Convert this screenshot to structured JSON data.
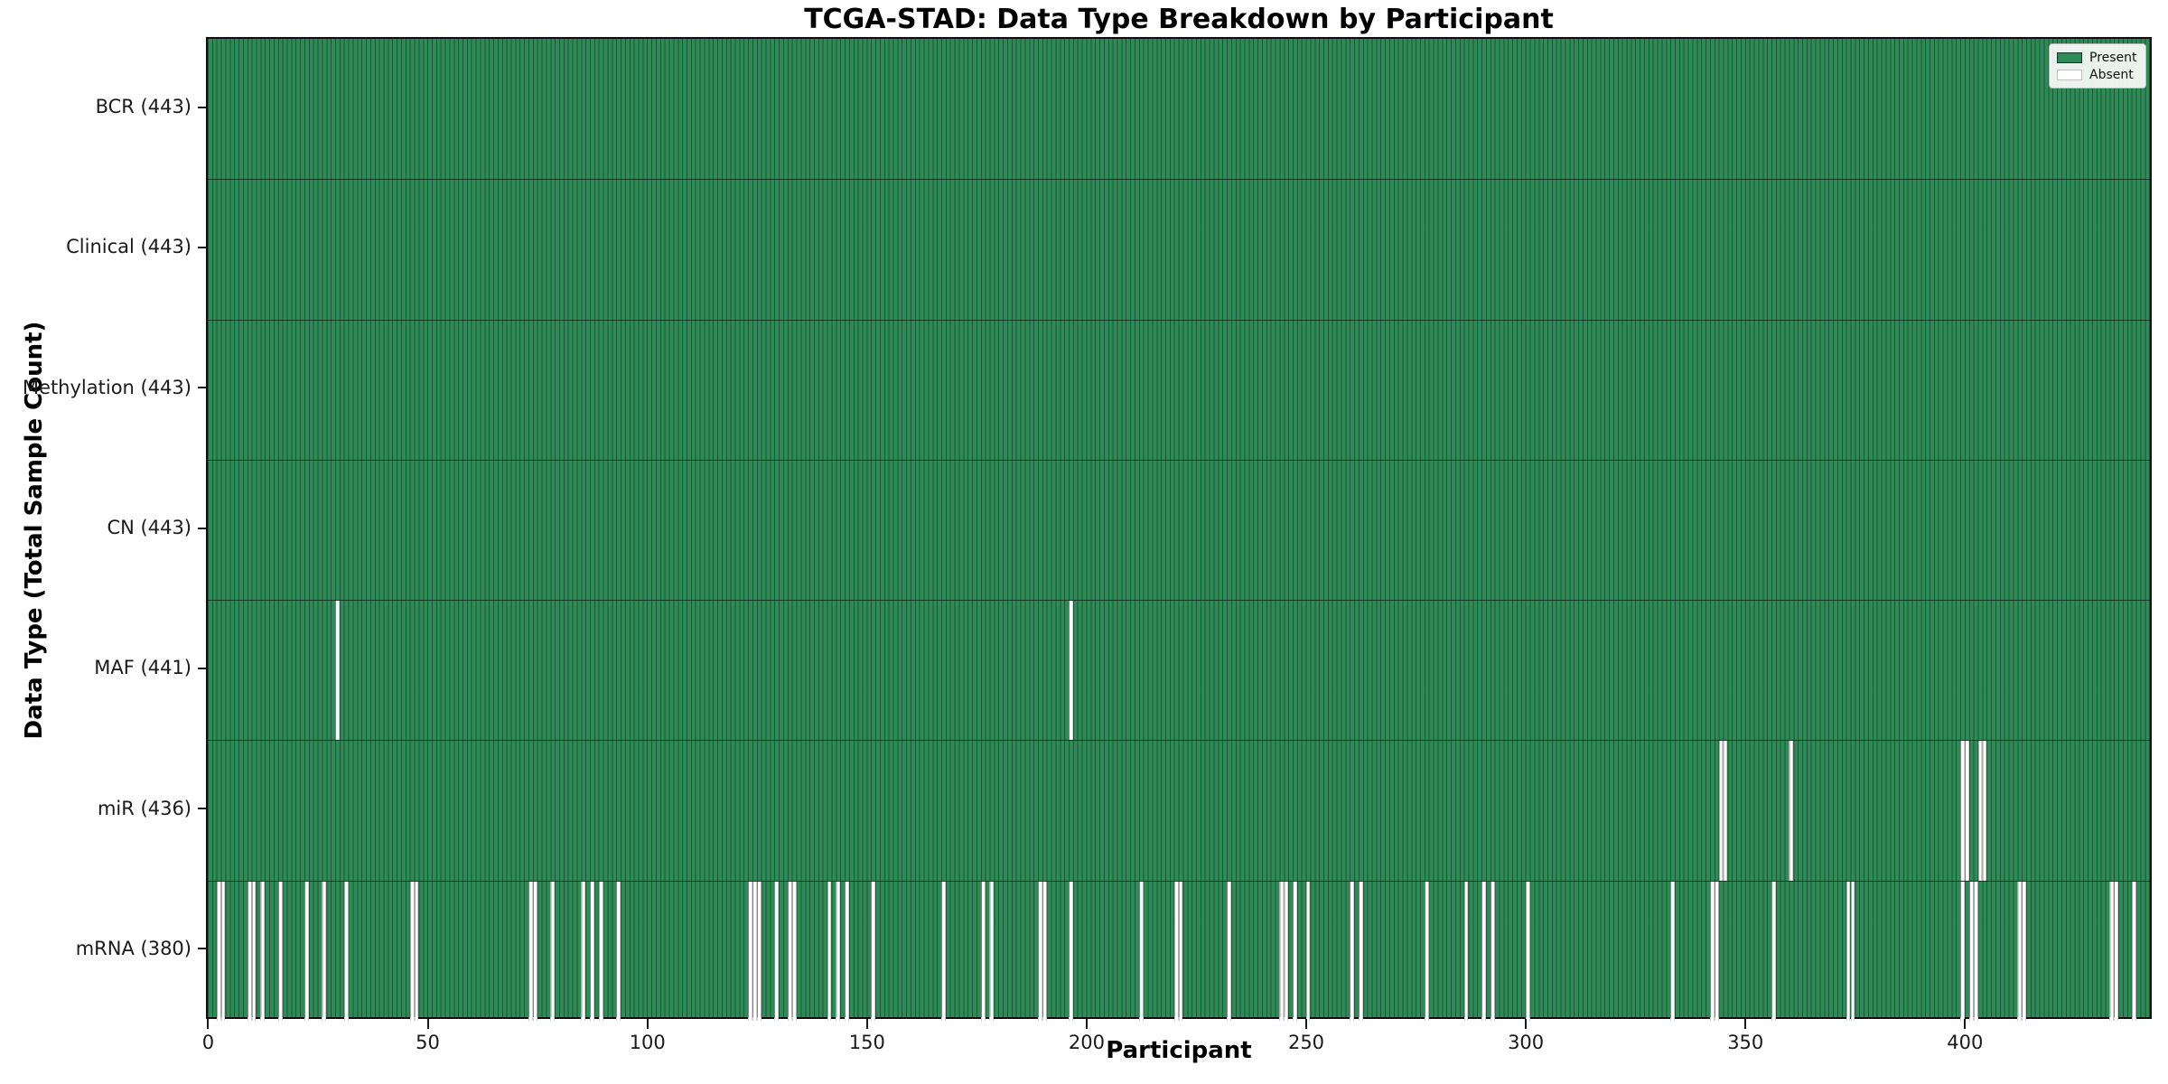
{
  "chart_data": {
    "type": "heatmap",
    "title": "TCGA-STAD: Data Type Breakdown by Participant",
    "xlabel": "Participant",
    "ylabel": "Data Type (Total Sample Count)",
    "n_participants": 443,
    "x_ticks": [
      0,
      50,
      100,
      150,
      200,
      250,
      300,
      350,
      400
    ],
    "rows": [
      {
        "name": "BCR",
        "label": "BCR (443)",
        "total": 443,
        "absent": []
      },
      {
        "name": "Clinical",
        "label": "Clinical (443)",
        "total": 443,
        "absent": []
      },
      {
        "name": "Methylation",
        "label": "Methylation (443)",
        "total": 443,
        "absent": []
      },
      {
        "name": "CN",
        "label": "CN (443)",
        "total": 443,
        "absent": []
      },
      {
        "name": "MAF",
        "label": "MAF (441)",
        "total": 441,
        "absent": [
          29,
          196
        ]
      },
      {
        "name": "miR",
        "label": "miR (436)",
        "total": 436,
        "absent": [
          344,
          345,
          360,
          399,
          400,
          403,
          404
        ]
      },
      {
        "name": "mRNA",
        "label": "mRNA (380)",
        "total": 380,
        "absent": [
          2,
          3,
          9,
          10,
          12,
          16,
          22,
          26,
          31,
          46,
          47,
          73,
          74,
          78,
          85,
          87,
          89,
          93,
          123,
          124,
          125,
          129,
          132,
          133,
          141,
          143,
          145,
          151,
          167,
          176,
          178,
          189,
          190,
          196,
          212,
          220,
          221,
          232,
          244,
          245,
          247,
          250,
          260,
          262,
          277,
          286,
          290,
          292,
          300,
          333,
          342,
          343,
          356,
          373,
          374,
          399,
          401,
          402,
          412,
          413,
          433,
          434,
          438
        ]
      }
    ],
    "legend": {
      "position": "upper right",
      "entries": [
        {
          "label": "Present",
          "color": "#2e8b57"
        },
        {
          "label": "Absent",
          "color": "#ffffff"
        }
      ]
    },
    "colors": {
      "present": "#2e8b57",
      "absent": "#ffffff",
      "cell_edge": "rgba(0,0,0,0.38)",
      "row_divider": "rgba(0,0,0,0.55)",
      "spine": "#0f0f0f",
      "background": "#ffffff",
      "text": "#000000"
    },
    "grid": false
  }
}
